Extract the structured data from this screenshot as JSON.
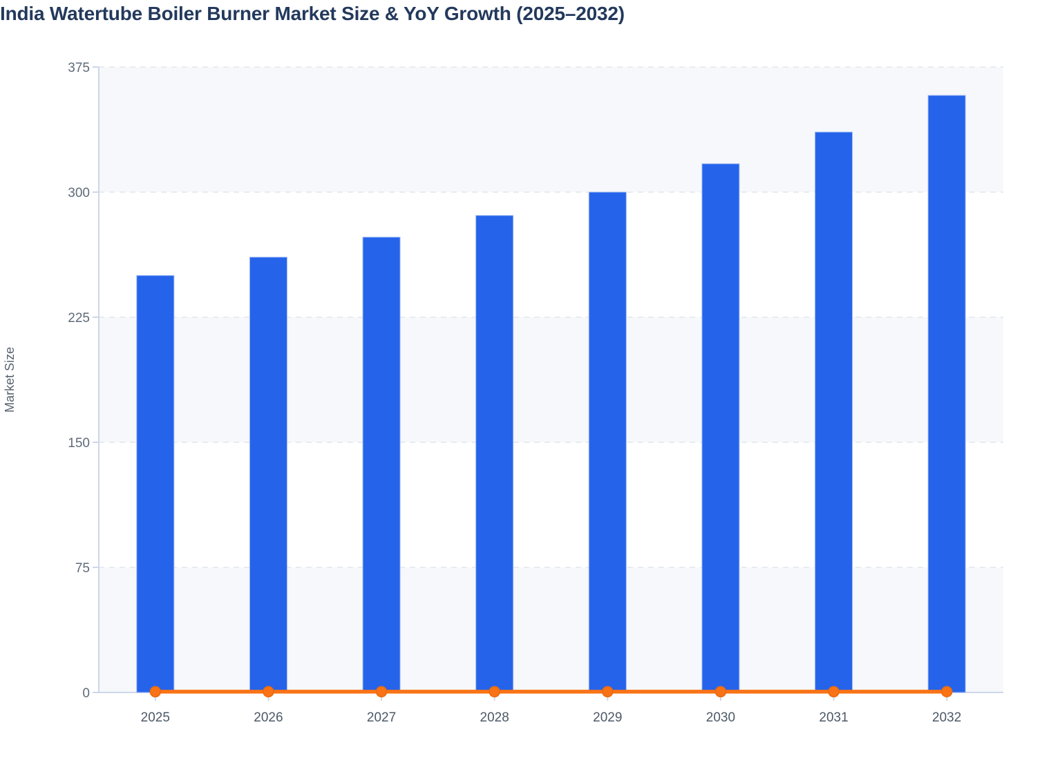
{
  "header": {
    "title": "India Watertube Boiler Burner Market Size & YoY Growth (2025–2032)"
  },
  "chart_data": {
    "type": "bar",
    "title": "India Watertube Boiler Burner Market Size & YoY Growth (2025–2032)",
    "categories": [
      "2025",
      "2026",
      "2027",
      "2028",
      "2029",
      "2030",
      "2031",
      "2032"
    ],
    "series": [
      {
        "name": "Market Size",
        "type": "bar",
        "values": [
          250,
          261,
          273,
          286,
          300,
          317,
          336,
          358
        ],
        "color": "#2563eb"
      },
      {
        "name": "YoY Growth",
        "type": "line",
        "values": [
          0.042,
          0.044,
          0.046,
          0.048,
          0.049,
          0.057,
          0.06,
          0.065
        ],
        "color": "#f97316"
      }
    ],
    "xlabel": "",
    "ylabel": "Market Size",
    "yticks": [
      0,
      75,
      150,
      225,
      300,
      375
    ],
    "ylim": [
      0,
      375
    ],
    "grid": "horizontal-dashed",
    "legend_position": "none",
    "plot_bands": "alternating"
  },
  "colors": {
    "bar": "#2563eb",
    "bar_border": "#9fbaf2",
    "line": "#f97316",
    "marker_border": "#e86a10",
    "band": "#f7f8fb",
    "gridline": "#e2e5ea",
    "axis": "#cdd6ec",
    "title": "#23395c",
    "ytick_label": "#5f6a78",
    "xtick_label": "#4c5866",
    "axis_title": "#5a6270"
  }
}
